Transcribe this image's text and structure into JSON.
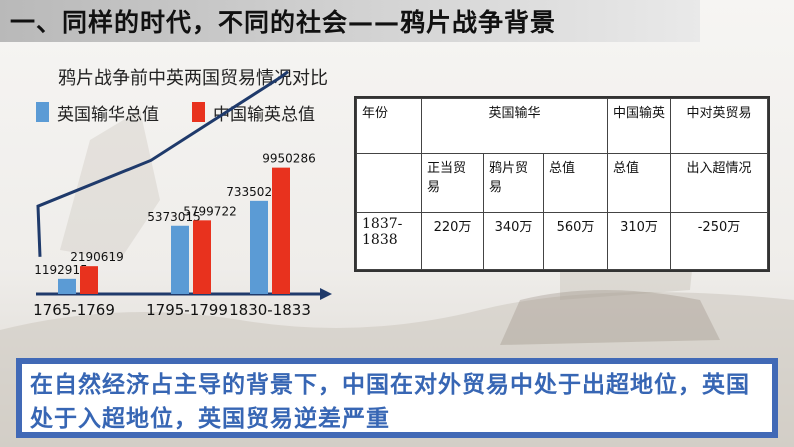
{
  "title": "一、同样的时代，不同的社会——鸦片战争背景",
  "chart_data": {
    "type": "bar",
    "title": "鸦片战争前中英两国贸易情况对比",
    "categories": [
      "1765-1769",
      "1795-1799",
      "1830-1833"
    ],
    "series": [
      {
        "name": "英国输华总值",
        "color": "#5b9bd5",
        "values": [
          1192915,
          5373015,
          7335023
        ]
      },
      {
        "name": "中国输英总值",
        "color": "#e8321e",
        "values": [
          2190619,
          5799722,
          9950286
        ]
      }
    ],
    "value_labels": [
      [
        "1192915",
        "5373015",
        "7335023"
      ],
      [
        "2190619",
        "5799722",
        "9950286"
      ]
    ],
    "trend_line_color": "#1f3a6b",
    "axis_color": "#1f3a6b"
  },
  "table": {
    "header1": {
      "year": "年份",
      "british": "英国输华",
      "chinese": "中国输英",
      "balance": "中对英贸易"
    },
    "header2": {
      "legit": "正当贸易",
      "opium": "鸦片贸易",
      "total": "总值",
      "cn_total": "总值",
      "status": "出入超情况"
    },
    "row": {
      "year": "1837-1838",
      "legit": "220万",
      "opium": "340万",
      "total": "560万",
      "cn_total": "310万",
      "balance": "-250万"
    }
  },
  "conclusion": "在自然经济占主导的背景下，中国在对外贸易中处于出超地位，英国处于入超地位，英国贸易逆差严重"
}
